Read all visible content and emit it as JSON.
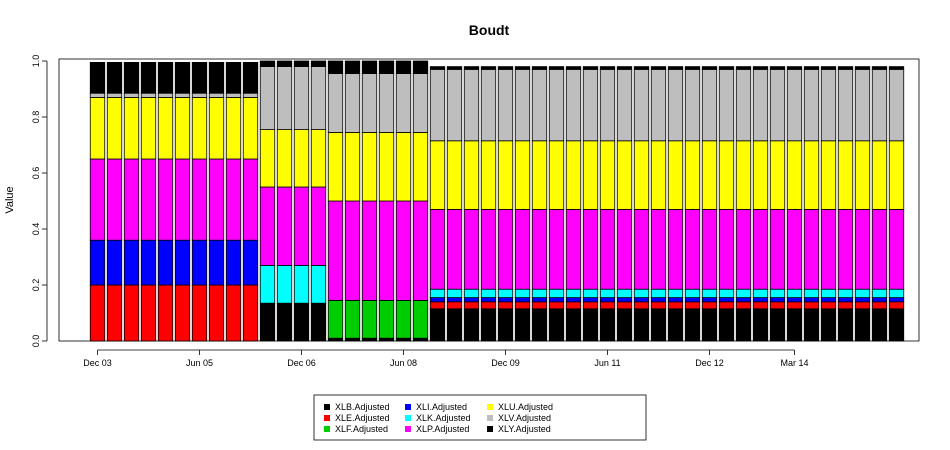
{
  "chart_data": {
    "type": "bar",
    "stacked": true,
    "title": "Boudt",
    "xlabel": "",
    "ylabel": "Value",
    "ylim": [
      0,
      1
    ],
    "yticks": [
      "0.0",
      "0.2",
      "0.4",
      "0.6",
      "0.8",
      "1.0"
    ],
    "xtick_labels": [
      {
        "label": "Dec 03",
        "bar": 0
      },
      {
        "label": "Jun 05",
        "bar": 6
      },
      {
        "label": "Dec 06",
        "bar": 12
      },
      {
        "label": "Jun 08",
        "bar": 18
      },
      {
        "label": "Dec 09",
        "bar": 24
      },
      {
        "label": "Jun 11",
        "bar": 30
      },
      {
        "label": "Dec 12",
        "bar": 36
      },
      {
        "label": "Mar 14",
        "bar": 41
      }
    ],
    "periods": [
      {
        "from": 0,
        "to": 9,
        "values": [
          0.0,
          0.2,
          0.0,
          0.16,
          0.0,
          0.29,
          0.22,
          0.015,
          0.11
        ]
      },
      {
        "from": 10,
        "to": 13,
        "values": [
          0.135,
          0.0,
          0.0,
          0.0,
          0.135,
          0.28,
          0.205,
          0.225,
          0.02
        ]
      },
      {
        "from": 14,
        "to": 19,
        "values": [
          0.01,
          0.0,
          0.135,
          0.0,
          0.0,
          0.355,
          0.245,
          0.21,
          0.045
        ]
      },
      {
        "from": 20,
        "to": 47,
        "values": [
          0.115,
          0.025,
          0.0,
          0.015,
          0.03,
          0.285,
          0.245,
          0.255,
          0.01
        ]
      }
    ],
    "bar_count": 48,
    "legend_placement": "bottom",
    "series": [
      {
        "name": "XLB.Adjusted",
        "color": "#000000"
      },
      {
        "name": "XLE.Adjusted",
        "color": "#ff0000"
      },
      {
        "name": "XLF.Adjusted",
        "color": "#00cd00"
      },
      {
        "name": "XLI.Adjusted",
        "color": "#0000ff"
      },
      {
        "name": "XLK.Adjusted",
        "color": "#00ffff"
      },
      {
        "name": "XLP.Adjusted",
        "color": "#ff00ff"
      },
      {
        "name": "XLU.Adjusted",
        "color": "#ffff00"
      },
      {
        "name": "XLV.Adjusted",
        "color": "#bebebe"
      },
      {
        "name": "XLY.Adjusted",
        "color": "#000000"
      }
    ]
  }
}
